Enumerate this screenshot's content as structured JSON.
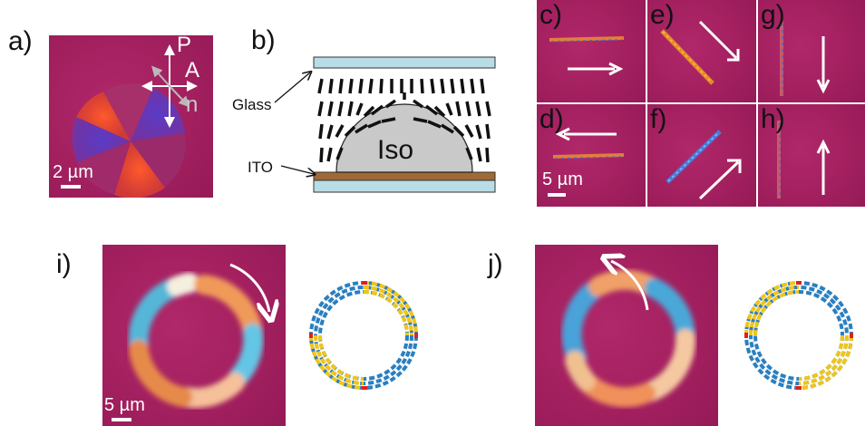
{
  "labels": {
    "a": "a)",
    "b": "b)",
    "c": "c)",
    "d": "d)",
    "e": "e)",
    "f": "f)",
    "g": "g)",
    "h": "h)",
    "i": "i)",
    "j": "j)"
  },
  "panel_a": {
    "polarizer": "P",
    "analyzer": "A",
    "director": "n",
    "scale": "2 µm"
  },
  "panel_b": {
    "glass": "Glass",
    "ito": "ITO",
    "iso": "Iso"
  },
  "panels_cdefgh": {
    "scale": "5 µm"
  },
  "panel_i": {
    "scale": "5 µm"
  },
  "colors": {
    "background_magenta": "#a3205f",
    "glass_blue": "#b9dde7",
    "ito_brown": "#a06a37",
    "iso_gray": "#c9c9c9",
    "ring_blue": "#2a7fc0",
    "ring_yellow": "#f0c51c",
    "ring_red": "#e0201c"
  }
}
